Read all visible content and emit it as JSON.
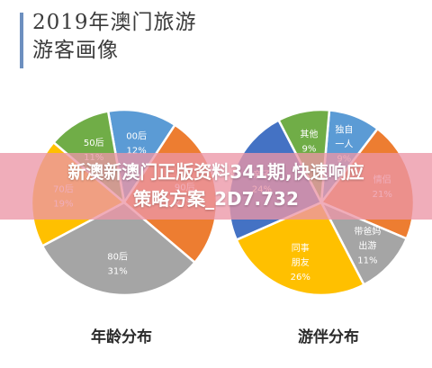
{
  "page": {
    "title_line1": "2019年澳门旅游",
    "title_line2": "游客画像",
    "banner_line1": "新澳新澳门正版资料341期,快速响应",
    "banner_line2": "策略方案_2D7.732"
  },
  "colors": {
    "blue": "#5b9bd5",
    "orange": "#ed7d31",
    "gray": "#a5a5a5",
    "yellow": "#ffc000",
    "navy": "#4472c4",
    "green": "#70ad47",
    "accent": "#6d8fbf"
  },
  "chart_data": [
    {
      "type": "pie",
      "title": "年龄分布",
      "slices": [
        {
          "label": "00后",
          "value": 12,
          "display": "12%",
          "color": "#5b9bd5"
        },
        {
          "label": "90后",
          "value": 27,
          "display": "27%",
          "color": "#ed7d31"
        },
        {
          "label": "80后",
          "value": 31,
          "display": "31%",
          "color": "#a5a5a5"
        },
        {
          "label": "70后",
          "value": 19,
          "display": "19%",
          "color": "#ffc000"
        },
        {
          "label": "50后",
          "value": 11,
          "display": "11%",
          "color": "#70ad47"
        }
      ]
    },
    {
      "type": "pie",
      "title": "游伴分布",
      "slices": [
        {
          "label": "独自一人",
          "value": 9,
          "display": "9%",
          "color": "#5b9bd5"
        },
        {
          "label": "情侣",
          "value": 21,
          "display": "21%",
          "color": "#ed7d31"
        },
        {
          "label": "带爸妈出游",
          "value": 11,
          "display": "11%",
          "color": "#a5a5a5"
        },
        {
          "label": "同事朋友",
          "value": 26,
          "display": "26%",
          "color": "#ffc000"
        },
        {
          "label": "亲子",
          "value": 24,
          "display": "24%",
          "color": "#4472c4"
        },
        {
          "label": "其他",
          "value": 9,
          "display": "9%",
          "color": "#70ad47"
        }
      ]
    }
  ]
}
